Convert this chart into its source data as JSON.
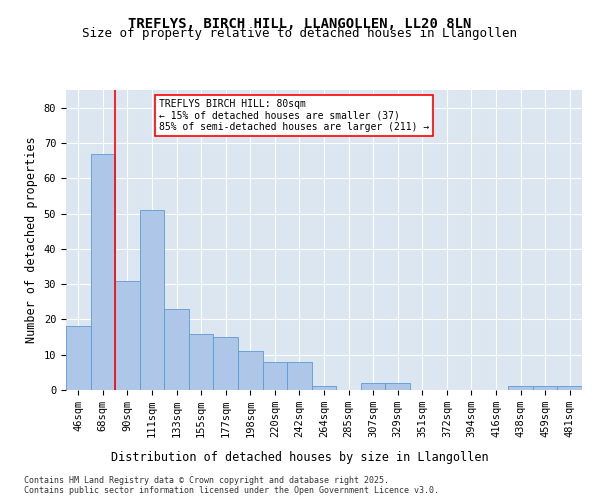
{
  "title": "TREFLYS, BIRCH HILL, LLANGOLLEN, LL20 8LN",
  "subtitle": "Size of property relative to detached houses in Llangollen",
  "xlabel": "Distribution of detached houses by size in Llangollen",
  "ylabel": "Number of detached properties",
  "categories": [
    "46sqm",
    "68sqm",
    "90sqm",
    "111sqm",
    "133sqm",
    "155sqm",
    "177sqm",
    "198sqm",
    "220sqm",
    "242sqm",
    "264sqm",
    "285sqm",
    "307sqm",
    "329sqm",
    "351sqm",
    "372sqm",
    "394sqm",
    "416sqm",
    "438sqm",
    "459sqm",
    "481sqm"
  ],
  "values": [
    18,
    67,
    31,
    51,
    23,
    16,
    15,
    11,
    8,
    8,
    1,
    0,
    2,
    2,
    0,
    0,
    0,
    0,
    1,
    1,
    1
  ],
  "bar_color": "#aec6e8",
  "bar_edgecolor": "#5b9bd5",
  "background_color": "#dce6f1",
  "grid_color": "#ffffff",
  "annotation_line1": "TREFLYS BIRCH HILL: 80sqm",
  "annotation_line2": "← 15% of detached houses are smaller (37)",
  "annotation_line3": "85% of semi-detached houses are larger (211) →",
  "redline_x": 1.5,
  "footer": "Contains HM Land Registry data © Crown copyright and database right 2025.\nContains public sector information licensed under the Open Government Licence v3.0.",
  "ylim": [
    0,
    85
  ],
  "yticks": [
    0,
    10,
    20,
    30,
    40,
    50,
    60,
    70,
    80
  ],
  "title_fontsize": 10,
  "subtitle_fontsize": 9,
  "axis_label_fontsize": 8.5,
  "tick_fontsize": 7.5,
  "footer_fontsize": 6,
  "annotation_fontsize": 7
}
